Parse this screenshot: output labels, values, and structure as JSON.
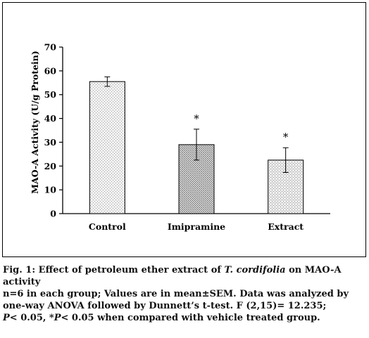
{
  "chart_data": {
    "type": "bar",
    "categories": [
      "Control",
      "Imipramine",
      "Extract"
    ],
    "values": [
      55.5,
      29,
      22.5
    ],
    "errors": [
      2,
      6.5,
      5.2
    ],
    "significance": [
      "",
      "*",
      "*"
    ],
    "ylabel": "MAO-A Activity (U/g Protein)",
    "ylim": [
      0,
      70
    ],
    "yticks": [
      "0",
      "10",
      "20",
      "30",
      "40",
      "50",
      "60",
      "70"
    ],
    "grid": false,
    "legend": "none"
  },
  "caption": {
    "fig_label": "Fig. 1: Effect of petroleum ether extract of ",
    "fig_species": "T. cordifolia",
    "fig_tail": " on MAO-A activity",
    "note_main": "n=6 in each group; Values are in mean±SEM. Data was analyzed by one-way ANOVA followed by Dunnett’s t-test. F (2,15)= 12.235;",
    "note_p1": "P",
    "note_p1_tail": "< 0.05, *",
    "note_p2": "P",
    "note_p2_tail": "< 0.05 when compared with vehicle treated group."
  }
}
